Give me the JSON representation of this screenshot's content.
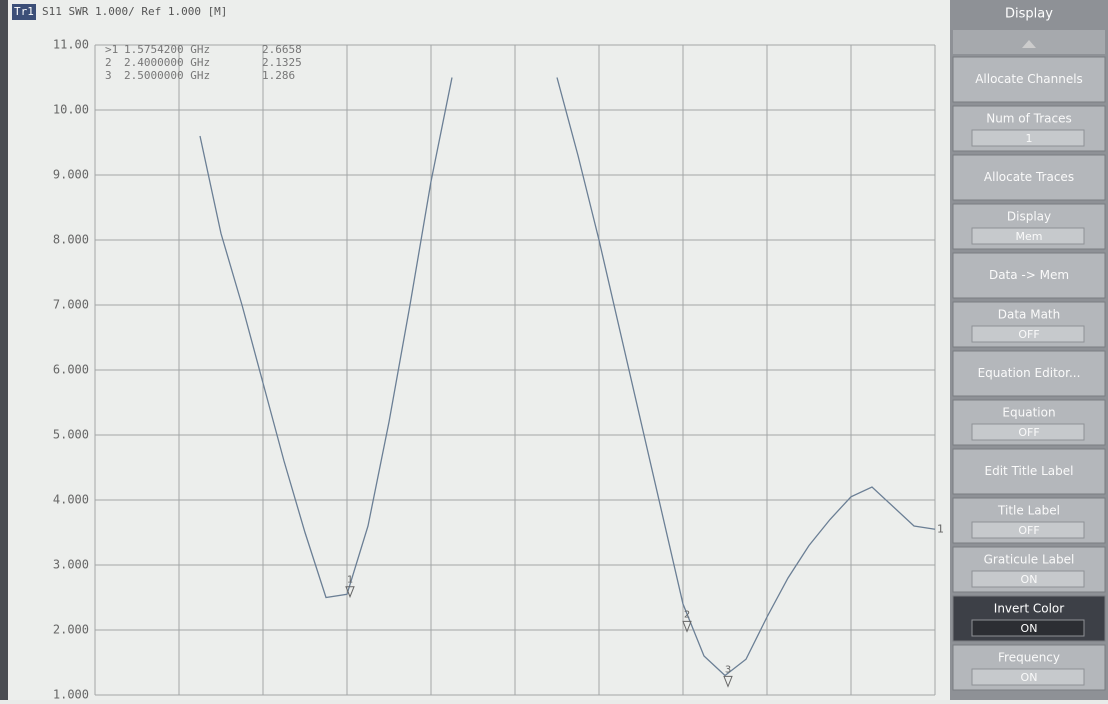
{
  "header": {
    "trace": "Tr1",
    "settings": "S11 SWR 1.000/ Ref 1.000 [M]"
  },
  "markers": [
    {
      "id": ">1",
      "label": "1",
      "frequency": "1.5754200 GHz",
      "value": 2.6658
    },
    {
      "id": "2",
      "label": "2",
      "frequency": "2.4000000 GHz",
      "value": 2.1325
    },
    {
      "id": "3",
      "label": "3",
      "frequency": "2.5000000 GHz",
      "value": 1.286
    }
  ],
  "chart_data": {
    "type": "line",
    "end_label": "1",
    "color": "#6b7f95",
    "grid": true,
    "values": [
      null,
      null,
      null,
      null,
      null,
      9.6,
      8.1,
      7.0,
      5.8,
      4.6,
      3.5,
      2.5,
      2.55,
      3.6,
      5.2,
      7.0,
      8.9,
      10.5,
      null,
      null,
      null,
      null,
      10.5,
      9.3,
      8.0,
      6.6,
      5.2,
      3.8,
      2.4,
      1.6,
      1.3,
      1.55,
      2.2,
      2.8,
      3.3,
      3.7,
      4.05,
      4.2,
      3.9,
      3.6,
      3.55
    ],
    "ylim": [
      1,
      11
    ],
    "yticks": [
      {
        "value": 11,
        "label": "11.00"
      },
      {
        "value": 10,
        "label": "10.00"
      },
      {
        "value": 9,
        "label": "9.000"
      },
      {
        "value": 8,
        "label": "8.000"
      },
      {
        "value": 7,
        "label": "7.000"
      },
      {
        "value": 6,
        "label": "6.000"
      },
      {
        "value": 5,
        "label": "5.000"
      },
      {
        "value": 4,
        "label": "4.000"
      },
      {
        "value": 3,
        "label": "3.000"
      },
      {
        "value": 2,
        "label": "2.000"
      },
      {
        "value": 1,
        "label": "1.000"
      }
    ]
  },
  "menu": {
    "title": "Display",
    "buttons": [
      {
        "label": "Allocate Channels"
      },
      {
        "label": "Num of Traces",
        "value": "1"
      },
      {
        "label": "Allocate Traces"
      },
      {
        "label": "Display",
        "value": "Mem"
      },
      {
        "label": "Data -> Mem"
      },
      {
        "label": "Data Math",
        "value": "OFF"
      },
      {
        "label": "Equation Editor..."
      },
      {
        "label": "Equation",
        "value": "OFF"
      },
      {
        "label": "Edit Title Label"
      },
      {
        "label": "Title Label",
        "value": "OFF"
      },
      {
        "label": "Graticule Label",
        "value": "ON"
      },
      {
        "label": "Invert Color",
        "value": "ON",
        "highlighted": true
      },
      {
        "label": "Frequency",
        "value": "ON"
      }
    ]
  }
}
